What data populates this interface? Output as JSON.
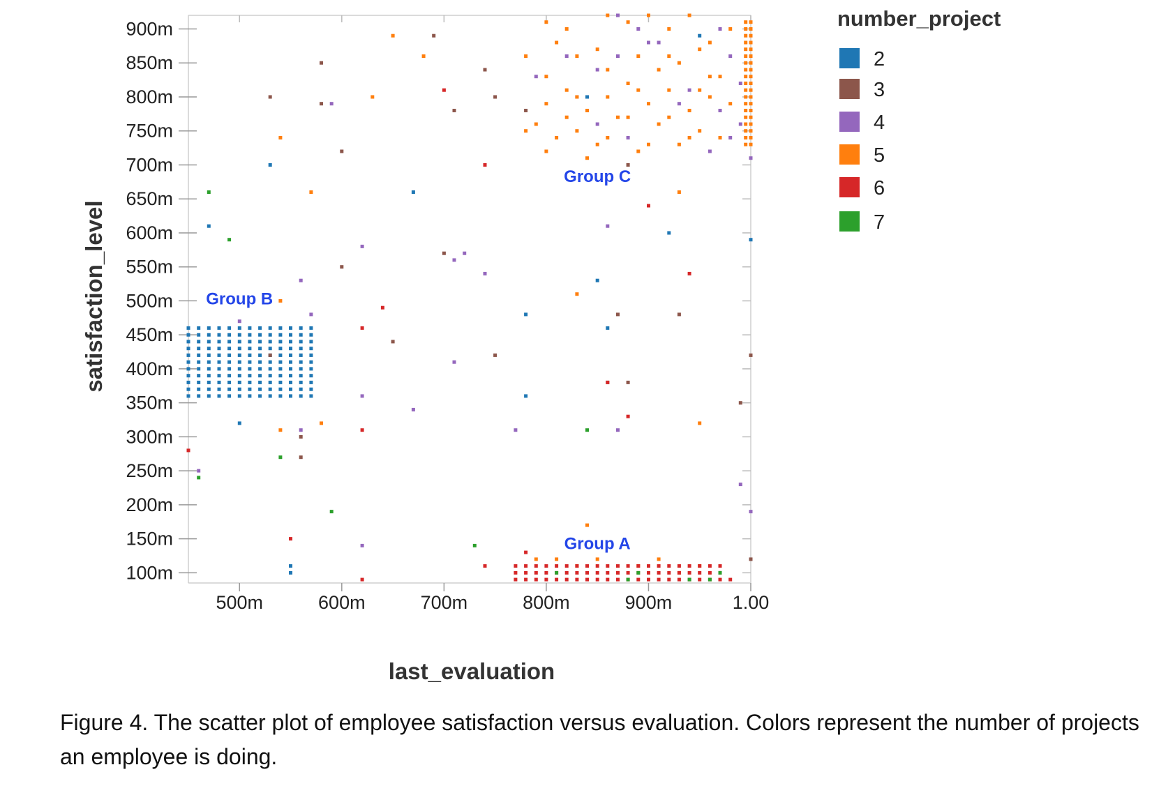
{
  "chart_data": {
    "type": "scatter",
    "xlabel": "last_evaluation",
    "ylabel": "satisfaction_level",
    "xlim": [
      0.45,
      1.0
    ],
    "ylim": [
      0.085,
      0.92
    ],
    "x_ticks": [
      {
        "value": 0.5,
        "label": "500m"
      },
      {
        "value": 0.6,
        "label": "600m"
      },
      {
        "value": 0.7,
        "label": "700m"
      },
      {
        "value": 0.8,
        "label": "800m"
      },
      {
        "value": 0.9,
        "label": "900m"
      },
      {
        "value": 1.0,
        "label": "1.00"
      }
    ],
    "y_ticks": [
      {
        "value": 0.1,
        "label": "100m"
      },
      {
        "value": 0.15,
        "label": "150m"
      },
      {
        "value": 0.2,
        "label": "200m"
      },
      {
        "value": 0.25,
        "label": "250m"
      },
      {
        "value": 0.3,
        "label": "300m"
      },
      {
        "value": 0.35,
        "label": "350m"
      },
      {
        "value": 0.4,
        "label": "400m"
      },
      {
        "value": 0.45,
        "label": "450m"
      },
      {
        "value": 0.5,
        "label": "500m"
      },
      {
        "value": 0.55,
        "label": "550m"
      },
      {
        "value": 0.6,
        "label": "600m"
      },
      {
        "value": 0.65,
        "label": "650m"
      },
      {
        "value": 0.7,
        "label": "700m"
      },
      {
        "value": 0.75,
        "label": "750m"
      },
      {
        "value": 0.8,
        "label": "800m"
      },
      {
        "value": 0.85,
        "label": "850m"
      },
      {
        "value": 0.9,
        "label": "900m"
      }
    ],
    "grid": false,
    "legend": {
      "title": "number_project",
      "position": "right",
      "entries": [
        {
          "label": "2",
          "color": "#1f77b4"
        },
        {
          "label": "3",
          "color": "#8c564b"
        },
        {
          "label": "4",
          "color": "#9467bd"
        },
        {
          "label": "5",
          "color": "#ff7f0e"
        },
        {
          "label": "6",
          "color": "#d62728"
        },
        {
          "label": "7",
          "color": "#2ca02c"
        }
      ]
    },
    "annotations": [
      {
        "text": "Group A",
        "x": 0.85,
        "y": 0.135,
        "color": "#2446e8"
      },
      {
        "text": "Group B",
        "x": 0.5,
        "y": 0.495,
        "color": "#2446e8"
      },
      {
        "text": "Group C",
        "x": 0.85,
        "y": 0.675,
        "color": "#2446e8"
      }
    ],
    "series": [
      {
        "group": "2",
        "color": "#1f77b4",
        "clusters": [
          {
            "x_range": [
              0.45,
              0.57
            ],
            "x_step": 0.01,
            "y_range": [
              0.36,
              0.46
            ],
            "y_step": 0.01
          }
        ],
        "points": [
          [
            0.53,
            0.7
          ],
          [
            0.67,
            0.66
          ],
          [
            0.47,
            0.61
          ],
          [
            0.92,
            0.6
          ],
          [
            1.0,
            0.59
          ],
          [
            0.85,
            0.53
          ],
          [
            0.78,
            0.48
          ],
          [
            0.86,
            0.46
          ],
          [
            0.78,
            0.36
          ],
          [
            0.5,
            0.32
          ],
          [
            0.55,
            0.11
          ],
          [
            0.55,
            0.1
          ],
          [
            0.95,
            0.89
          ],
          [
            0.84,
            0.8
          ]
        ]
      },
      {
        "group": "3",
        "color": "#8c564b",
        "points": [
          [
            0.58,
            0.85
          ],
          [
            0.53,
            0.8
          ],
          [
            0.58,
            0.79
          ],
          [
            0.6,
            0.72
          ],
          [
            0.69,
            0.89
          ],
          [
            0.74,
            0.84
          ],
          [
            0.75,
            0.8
          ],
          [
            0.71,
            0.78
          ],
          [
            0.78,
            0.78
          ],
          [
            0.88,
            0.7
          ],
          [
            0.6,
            0.55
          ],
          [
            0.7,
            0.57
          ],
          [
            0.65,
            0.44
          ],
          [
            0.75,
            0.42
          ],
          [
            0.87,
            0.48
          ],
          [
            0.93,
            0.48
          ],
          [
            0.86,
            0.38
          ],
          [
            0.88,
            0.38
          ],
          [
            0.99,
            0.35
          ],
          [
            1.0,
            0.42
          ],
          [
            0.56,
            0.3
          ],
          [
            0.56,
            0.27
          ],
          [
            0.53,
            0.42
          ],
          [
            1.0,
            0.12
          ]
        ]
      },
      {
        "group": "4",
        "color": "#9467bd",
        "points": [
          [
            0.59,
            0.79
          ],
          [
            0.62,
            0.58
          ],
          [
            0.71,
            0.56
          ],
          [
            0.72,
            0.57
          ],
          [
            0.74,
            0.54
          ],
          [
            0.56,
            0.53
          ],
          [
            0.57,
            0.48
          ],
          [
            0.5,
            0.47
          ],
          [
            0.71,
            0.41
          ],
          [
            0.62,
            0.36
          ],
          [
            0.67,
            0.34
          ],
          [
            0.77,
            0.31
          ],
          [
            0.87,
            0.31
          ],
          [
            0.56,
            0.31
          ],
          [
            0.46,
            0.25
          ],
          [
            0.62,
            0.14
          ],
          [
            0.86,
            0.61
          ],
          [
            0.99,
            0.23
          ],
          [
            1.0,
            0.19
          ],
          [
            0.87,
            0.92
          ],
          [
            0.89,
            0.9
          ],
          [
            0.91,
            0.88
          ],
          [
            0.97,
            0.9
          ],
          [
            0.96,
            0.72
          ],
          [
            0.98,
            0.74
          ],
          [
            0.99,
            0.76
          ],
          [
            1.0,
            0.71
          ],
          [
            0.88,
            0.74
          ],
          [
            0.85,
            0.84
          ],
          [
            0.83,
            0.8
          ],
          [
            0.94,
            0.81
          ],
          [
            0.98,
            0.86
          ],
          [
            0.99,
            0.82
          ],
          [
            0.85,
            0.76
          ],
          [
            0.9,
            0.88
          ],
          [
            0.93,
            0.79
          ],
          [
            0.87,
            0.86
          ],
          [
            0.82,
            0.86
          ],
          [
            0.79,
            0.83
          ],
          [
            0.97,
            0.78
          ]
        ]
      },
      {
        "group": "5",
        "color": "#ff7f0e",
        "clusters": [
          {
            "x_range": [
              0.995,
              1.0
            ],
            "x_step": 0.005,
            "y_range": [
              0.73,
              0.92
            ],
            "y_step": 0.01
          }
        ],
        "points": [
          [
            0.65,
            0.89
          ],
          [
            0.68,
            0.86
          ],
          [
            0.63,
            0.8
          ],
          [
            0.54,
            0.74
          ],
          [
            0.57,
            0.66
          ],
          [
            0.54,
            0.5
          ],
          [
            0.83,
            0.51
          ],
          [
            0.93,
            0.66
          ],
          [
            0.58,
            0.32
          ],
          [
            0.54,
            0.31
          ],
          [
            0.95,
            0.32
          ],
          [
            0.84,
            0.17
          ],
          [
            0.8,
            0.91
          ],
          [
            0.82,
            0.9
          ],
          [
            0.86,
            0.92
          ],
          [
            0.88,
            0.91
          ],
          [
            0.9,
            0.92
          ],
          [
            0.92,
            0.9
          ],
          [
            0.94,
            0.92
          ],
          [
            0.96,
            0.88
          ],
          [
            0.98,
            0.9
          ],
          [
            0.81,
            0.88
          ],
          [
            0.83,
            0.86
          ],
          [
            0.85,
            0.87
          ],
          [
            0.89,
            0.86
          ],
          [
            0.91,
            0.84
          ],
          [
            0.93,
            0.85
          ],
          [
            0.95,
            0.87
          ],
          [
            0.97,
            0.83
          ],
          [
            0.8,
            0.83
          ],
          [
            0.82,
            0.81
          ],
          [
            0.84,
            0.78
          ],
          [
            0.86,
            0.8
          ],
          [
            0.88,
            0.82
          ],
          [
            0.9,
            0.79
          ],
          [
            0.92,
            0.81
          ],
          [
            0.94,
            0.78
          ],
          [
            0.96,
            0.8
          ],
          [
            0.98,
            0.79
          ],
          [
            0.79,
            0.76
          ],
          [
            0.81,
            0.74
          ],
          [
            0.83,
            0.75
          ],
          [
            0.85,
            0.73
          ],
          [
            0.87,
            0.77
          ],
          [
            0.89,
            0.72
          ],
          [
            0.91,
            0.76
          ],
          [
            0.93,
            0.73
          ],
          [
            0.95,
            0.75
          ],
          [
            0.97,
            0.74
          ],
          [
            0.78,
            0.75
          ],
          [
            0.8,
            0.72
          ],
          [
            0.82,
            0.77
          ],
          [
            0.84,
            0.71
          ],
          [
            0.86,
            0.74
          ],
          [
            0.88,
            0.77
          ],
          [
            0.9,
            0.73
          ],
          [
            0.92,
            0.77
          ],
          [
            0.94,
            0.74
          ],
          [
            0.78,
            0.86
          ],
          [
            0.8,
            0.79
          ],
          [
            0.86,
            0.84
          ],
          [
            0.92,
            0.86
          ],
          [
            0.96,
            0.83
          ],
          [
            0.83,
            0.8
          ],
          [
            0.89,
            0.81
          ],
          [
            0.95,
            0.81
          ],
          [
            0.79,
            0.12
          ],
          [
            0.81,
            0.12
          ],
          [
            0.83,
            0.11
          ],
          [
            0.85,
            0.12
          ],
          [
            0.87,
            0.1
          ],
          [
            0.89,
            0.11
          ],
          [
            0.91,
            0.12
          ],
          [
            0.93,
            0.1
          ],
          [
            0.95,
            0.11
          ]
        ]
      },
      {
        "group": "6",
        "color": "#d62728",
        "clusters": [
          {
            "x_range": [
              0.77,
              0.97
            ],
            "x_step": 0.01,
            "y_range": [
              0.09,
              0.11
            ],
            "y_step": 0.01
          }
        ],
        "points": [
          [
            0.7,
            0.81
          ],
          [
            0.74,
            0.7
          ],
          [
            0.9,
            0.64
          ],
          [
            0.94,
            0.54
          ],
          [
            0.64,
            0.49
          ],
          [
            0.62,
            0.46
          ],
          [
            0.86,
            0.38
          ],
          [
            0.88,
            0.33
          ],
          [
            0.62,
            0.31
          ],
          [
            0.45,
            0.28
          ],
          [
            0.55,
            0.15
          ],
          [
            0.74,
            0.11
          ],
          [
            0.78,
            0.13
          ],
          [
            0.62,
            0.09
          ],
          [
            0.98,
            0.09
          ]
        ]
      },
      {
        "group": "7",
        "color": "#2ca02c",
        "points": [
          [
            0.47,
            0.66
          ],
          [
            0.49,
            0.59
          ],
          [
            0.54,
            0.27
          ],
          [
            0.46,
            0.24
          ],
          [
            0.59,
            0.19
          ],
          [
            0.73,
            0.14
          ],
          [
            0.84,
            0.31
          ],
          [
            0.81,
            0.1
          ],
          [
            0.88,
            0.09
          ],
          [
            0.89,
            0.1
          ],
          [
            0.94,
            0.09
          ],
          [
            0.96,
            0.09
          ],
          [
            0.97,
            0.1
          ]
        ]
      }
    ]
  },
  "caption": "Figure 4. The scatter plot of employee satisfaction versus evaluation. Colors represent the number of projects an employee is doing."
}
